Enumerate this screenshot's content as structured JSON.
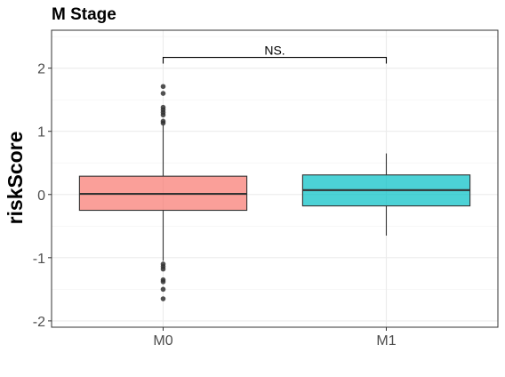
{
  "chart_data": {
    "type": "box",
    "title": "M Stage",
    "xlabel": "",
    "ylabel": "riskScore",
    "categories": [
      "M0",
      "M1"
    ],
    "ylim": [
      -2.1,
      2.6
    ],
    "yticks": [
      -2,
      -1,
      0,
      1,
      2
    ],
    "ytick_labels": [
      "-2",
      "-1",
      "0",
      "1",
      "2"
    ],
    "grid": true,
    "legend": "none",
    "boxes": [
      {
        "category": "M0",
        "color": "#F8766D",
        "whisker_low": -1.05,
        "q1": -0.25,
        "median": 0.01,
        "q3": 0.29,
        "whisker_high": 1.1,
        "outliers": [
          1.71,
          1.6,
          1.38,
          1.34,
          1.3,
          1.26,
          1.16,
          1.13,
          -1.1,
          -1.14,
          -1.18,
          -1.35,
          -1.38,
          -1.5,
          -1.65
        ]
      },
      {
        "category": "M1",
        "color": "#00BFC4",
        "whisker_low": -0.65,
        "q1": -0.18,
        "median": 0.07,
        "q3": 0.31,
        "whisker_high": 0.65,
        "outliers": []
      }
    ],
    "significance": {
      "label": "NS.",
      "from": "M0",
      "to": "M1",
      "y": 2.17
    }
  }
}
